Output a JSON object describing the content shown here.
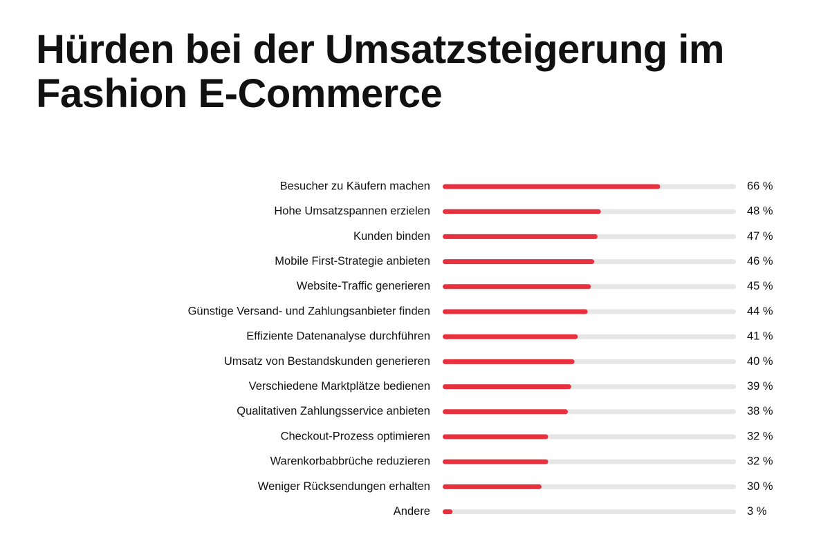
{
  "chart_data": {
    "type": "bar",
    "orientation": "horizontal",
    "title": "Hürden bei der Umsatzsteigerung im Fashion E-Commerce",
    "categories": [
      "Besucher zu Käufern machen",
      "Hohe Umsatzspannen erzielen",
      "Kunden binden",
      "Mobile First-Strategie anbieten",
      "Website-Traffic generieren",
      "Günstige Versand- und Zahlungsanbieter finden",
      "Effiziente Datenanalyse durchführen",
      "Umsatz von Bestandskunden generieren",
      "Verschiedene Marktplätze bedienen",
      "Qualitativen Zahlungsservice anbieten",
      "Checkout-Prozess optimieren",
      "Warenkorbabbrüche reduzieren",
      "Weniger Rücksendungen erhalten",
      "Andere"
    ],
    "values": [
      66,
      48,
      47,
      46,
      45,
      44,
      41,
      40,
      39,
      38,
      32,
      32,
      30,
      3
    ],
    "value_labels": [
      "66 %",
      "48 %",
      "47 %",
      "46 %",
      "45 %",
      "44 %",
      "41 %",
      "40 %",
      "39 %",
      "38 %",
      "32 %",
      "32 %",
      "30 %",
      "3 %"
    ],
    "xlim": [
      0,
      89
    ],
    "grid": false,
    "colors": {
      "bar": "#e8313f",
      "track": "#e6e6e6",
      "text": "#111111"
    }
  }
}
